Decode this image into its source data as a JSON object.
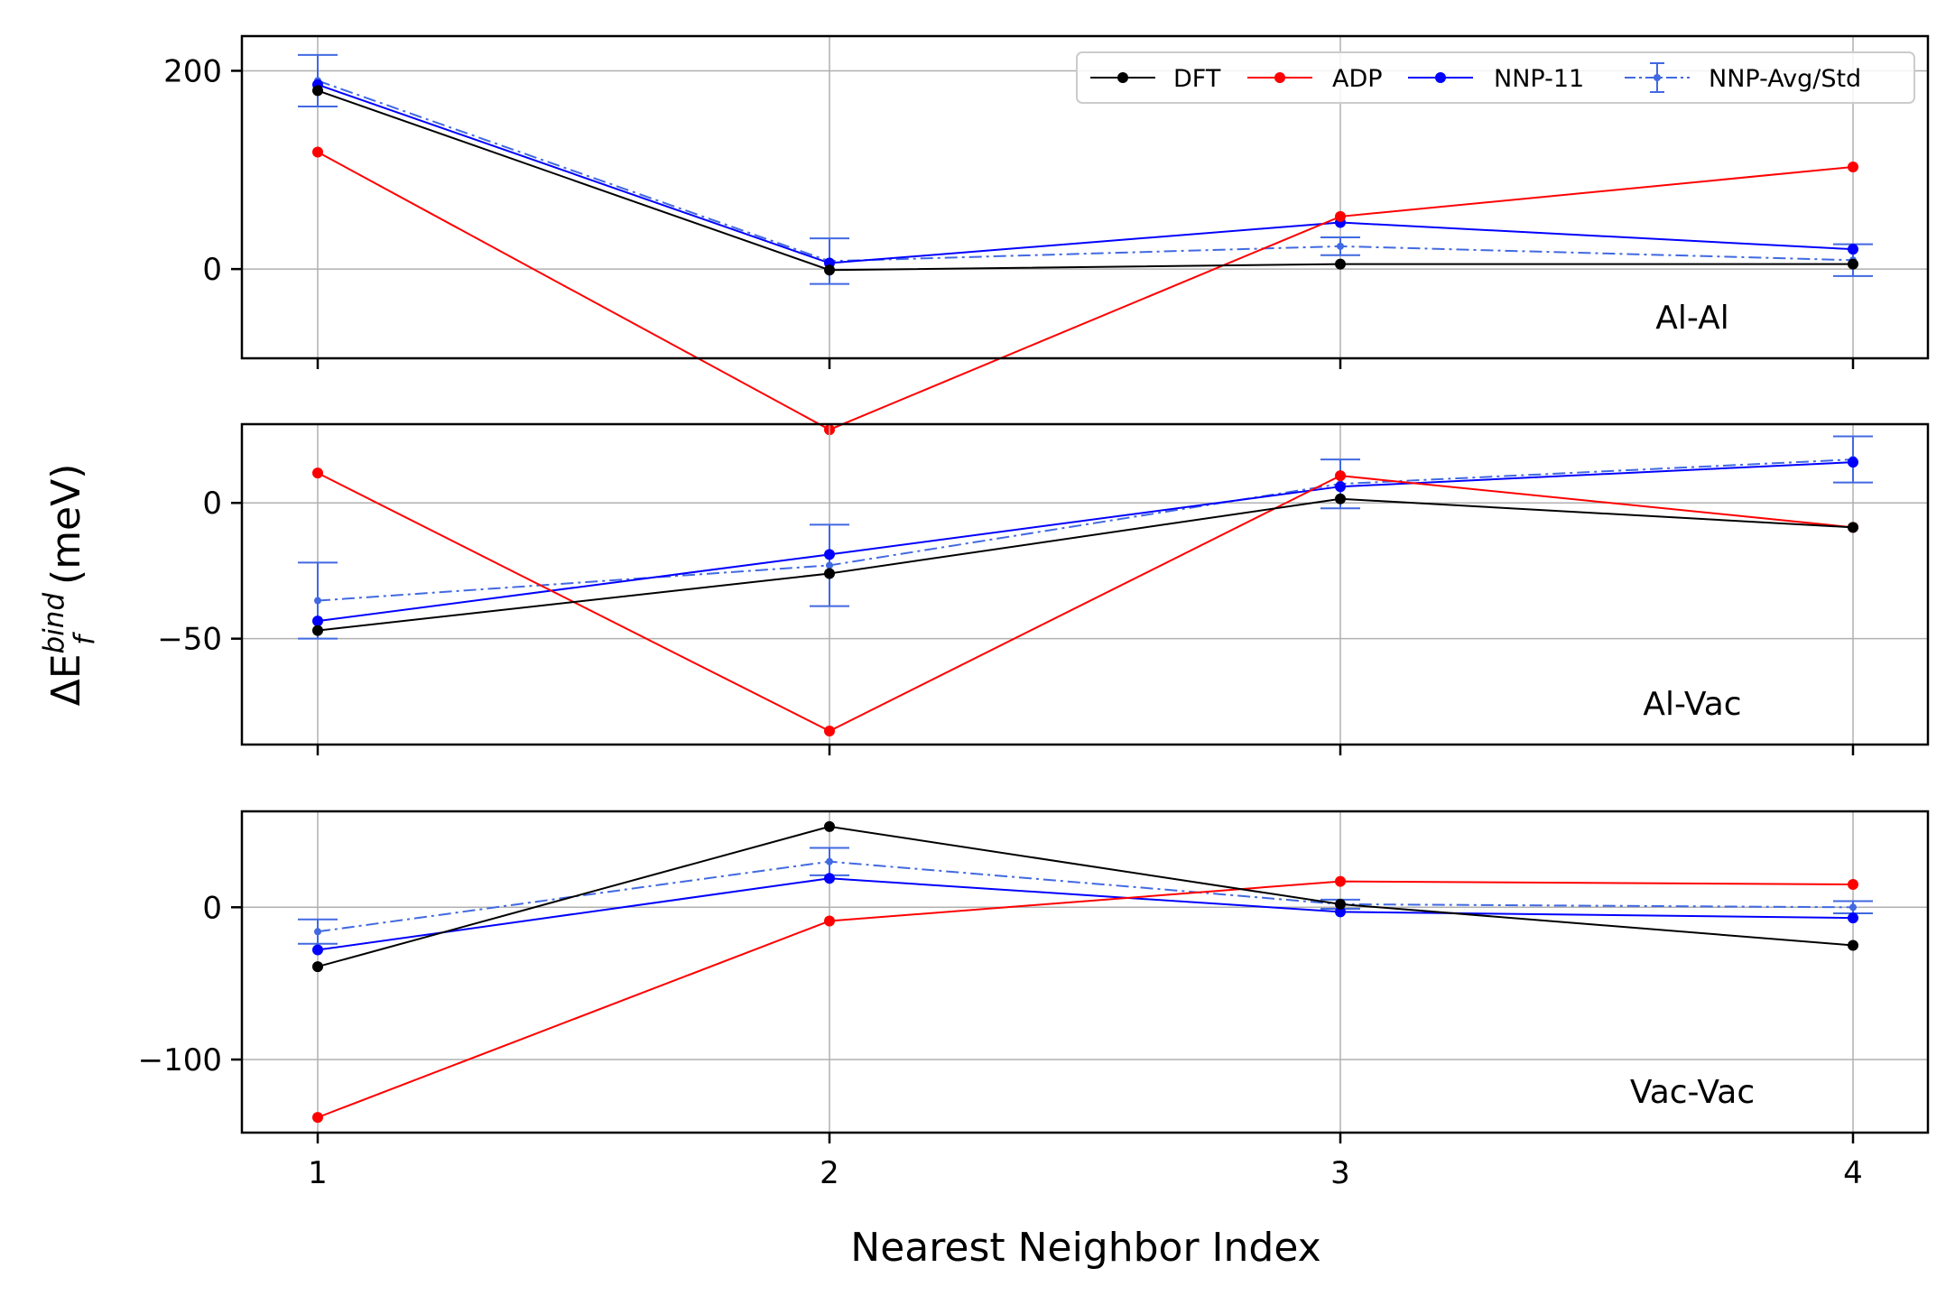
{
  "chart_data": {
    "type": "line",
    "xlabel": "Nearest Neighbor Index",
    "ylabel": {
      "prefix": "ΔE",
      "subscript": "f",
      "superscript": "bind",
      "suffix": " (meV)"
    },
    "x": [
      1,
      2,
      3,
      4
    ],
    "xticks": [
      "1",
      "2",
      "3",
      "4"
    ],
    "grid": true,
    "legend_position": "top-right of first panel",
    "legend": [
      {
        "name": "DFT",
        "color": "#000000",
        "style": "solid"
      },
      {
        "name": "ADP",
        "color": "#ff0000",
        "style": "solid"
      },
      {
        "name": "NNP-11",
        "color": "#0000ff",
        "style": "solid"
      },
      {
        "name": "NNP-Avg/Std",
        "color": "#4169e1",
        "style": "dashdot-errorbar"
      }
    ],
    "panels": [
      {
        "label": "Al-Al",
        "ylim": [
          -90,
          235
        ],
        "yticks": [
          {
            "v": 0,
            "t": "0"
          },
          {
            "v": 200,
            "t": "200"
          }
        ],
        "series": [
          {
            "name": "DFT",
            "values": [
              180,
              -1,
              5,
              5
            ]
          },
          {
            "name": "ADP",
            "values": [
              118,
              -162,
              53,
              103
            ]
          },
          {
            "name": "NNP-11",
            "values": [
              186,
              6,
              47,
              20
            ]
          },
          {
            "name": "NNP-Avg/Std",
            "values": [
              190,
              8,
              23,
              9
            ],
            "err": [
              26,
              23,
              9,
              16
            ]
          }
        ]
      },
      {
        "label": "Al-Vac",
        "ylim": [
          -89,
          29
        ],
        "yticks": [
          {
            "v": -50,
            "t": "−50"
          },
          {
            "v": 0,
            "t": "0"
          }
        ],
        "series": [
          {
            "name": "DFT",
            "values": [
              -47,
              -26,
              1.5,
              -9
            ]
          },
          {
            "name": "ADP",
            "values": [
              11,
              -84,
              10,
              -9
            ]
          },
          {
            "name": "NNP-11",
            "values": [
              -43.5,
              -19,
              6,
              15
            ]
          },
          {
            "name": "NNP-Avg/Std",
            "values": [
              -36,
              -23,
              7,
              16
            ],
            "err": [
              14,
              15,
              9,
              8.5
            ]
          }
        ]
      },
      {
        "label": "Vac-Vac",
        "ylim": [
          -148,
          63
        ],
        "yticks": [
          {
            "v": -100,
            "t": "−100"
          },
          {
            "v": 0,
            "t": "0"
          }
        ],
        "series": [
          {
            "name": "DFT",
            "values": [
              -39,
              53,
              2,
              -25
            ]
          },
          {
            "name": "ADP",
            "values": [
              -138,
              -9,
              17,
              15
            ]
          },
          {
            "name": "NNP-11",
            "values": [
              -28,
              19,
              -3,
              -7
            ]
          },
          {
            "name": "NNP-Avg/Std",
            "values": [
              -16,
              30,
              2,
              0
            ],
            "err": [
              8,
              9,
              3,
              4
            ]
          }
        ]
      }
    ]
  }
}
